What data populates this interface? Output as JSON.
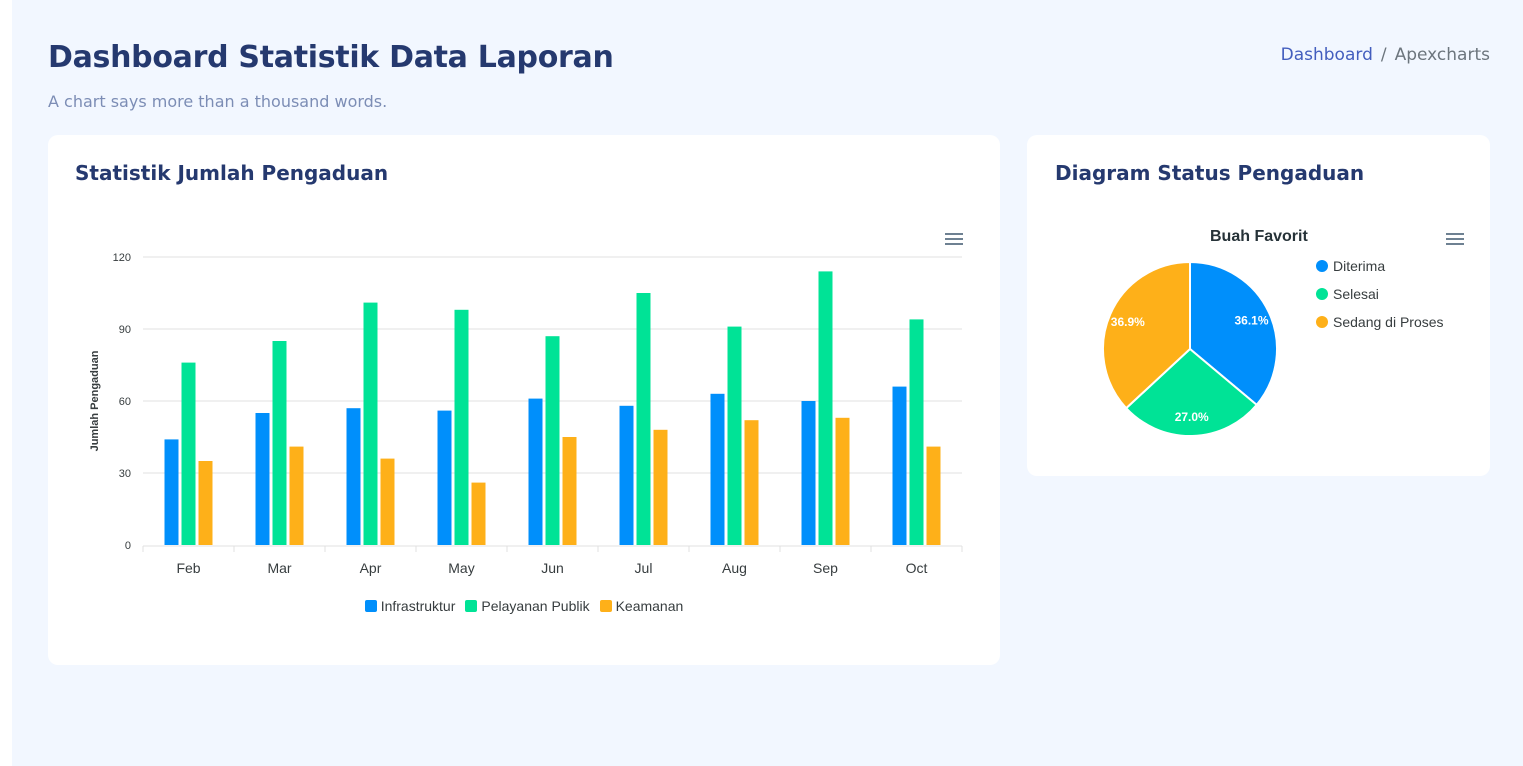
{
  "header": {
    "title": "Dashboard Statistik Data Laporan",
    "subtitle": "A chart says more than a thousand words.",
    "breadcrumb": {
      "items": [
        "Dashboard",
        "Apexcharts"
      ],
      "separator": "/"
    }
  },
  "bar_card": {
    "title": "Statistik Jumlah Pengaduan",
    "menu_icon": "hamburger-menu-icon"
  },
  "pie_card": {
    "title": "Diagram Status Pengaduan",
    "menu_icon": "hamburger-menu-icon"
  },
  "chart_data": [
    {
      "type": "bar",
      "title": "",
      "xlabel": "",
      "ylabel": "Jumlah Pengaduan",
      "ylim": [
        0,
        120
      ],
      "yticks": [
        0,
        30,
        60,
        90,
        120
      ],
      "grid": true,
      "legend_position": "bottom",
      "categories": [
        "Feb",
        "Mar",
        "Apr",
        "May",
        "Jun",
        "Jul",
        "Aug",
        "Sep",
        "Oct"
      ],
      "series": [
        {
          "name": "Infrastruktur",
          "color": "#008ffb",
          "values": [
            44,
            55,
            57,
            56,
            61,
            58,
            63,
            60,
            66
          ]
        },
        {
          "name": "Pelayanan Publik",
          "color": "#00e396",
          "values": [
            76,
            85,
            101,
            98,
            87,
            105,
            91,
            114,
            94
          ]
        },
        {
          "name": "Keamanan",
          "color": "#feb019",
          "values": [
            35,
            41,
            36,
            26,
            45,
            48,
            52,
            53,
            41
          ]
        }
      ]
    },
    {
      "type": "pie",
      "title": "Buah Favorit",
      "legend_position": "right",
      "labels": [
        "Diterima",
        "Selesai",
        "Sedang di Proses"
      ],
      "values": [
        36.1,
        27.0,
        36.9
      ],
      "value_labels": [
        "36.1%",
        "27.0%",
        "36.9%"
      ],
      "colors": [
        "#008ffb",
        "#00e396",
        "#feb019"
      ]
    }
  ]
}
